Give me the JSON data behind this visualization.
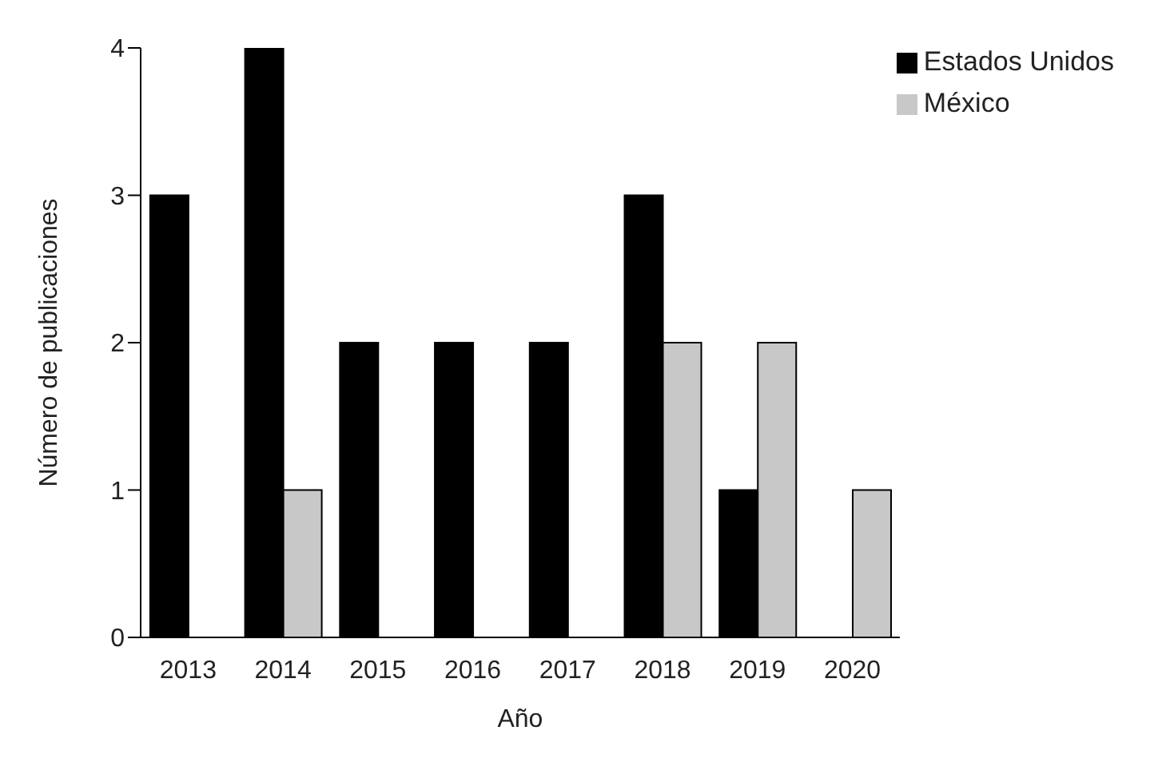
{
  "chart_data": {
    "type": "bar",
    "xlabel": "Año",
    "ylabel": "Número de publicaciones",
    "categories": [
      "2013",
      "2014",
      "2015",
      "2016",
      "2017",
      "2018",
      "2019",
      "2020"
    ],
    "series": [
      {
        "name": "Estados Unidos",
        "color": "#000000",
        "values": [
          3,
          4,
          2,
          2,
          2,
          3,
          1,
          null
        ]
      },
      {
        "name": "México",
        "color": "#c8c8c8",
        "values": [
          null,
          1,
          null,
          null,
          null,
          2,
          2,
          1
        ]
      }
    ],
    "ylim": [
      0,
      4
    ],
    "yticks": [
      0,
      1,
      2,
      3,
      4
    ],
    "grid": false,
    "legend": "top right"
  }
}
